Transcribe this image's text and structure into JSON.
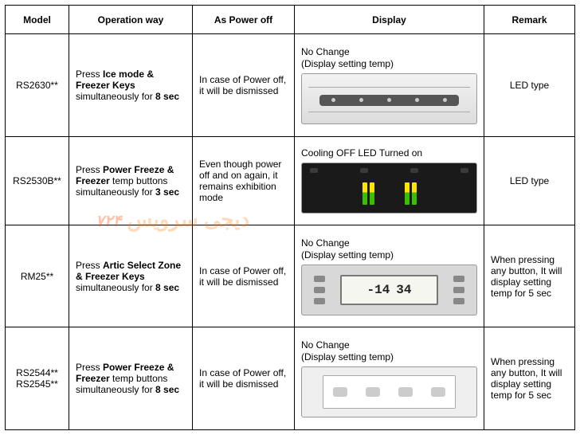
{
  "columns": {
    "model": "Model",
    "operation": "Operation way",
    "power": "As Power off",
    "display": "Display",
    "remark": "Remark"
  },
  "rows": [
    {
      "model": "RS2630**",
      "op_pre": "Press ",
      "op_bold": "Ice mode & Freezer Keys",
      "op_post": " simultaneously for ",
      "op_sec": "8 sec",
      "power": "In case of Power off, it will be dismissed",
      "display_line1": "No Change",
      "display_line2": "(Display setting temp)",
      "remark": "LED type"
    },
    {
      "model": "RS2530B**",
      "op_pre": "Press ",
      "op_bold": "Power Freeze & Freezer",
      "op_post": " temp buttons simultaneously for ",
      "op_sec": "3 sec",
      "power": "Even though power off and on again, it remains exhibition mode",
      "display_line1": "Cooling OFF LED Turned on",
      "display_line2": "",
      "remark": "LED type"
    },
    {
      "model": "RM25**",
      "op_pre": "Press ",
      "op_bold": "Artic Select Zone & Freezer Keys",
      "op_post": " simultaneously for ",
      "op_sec": "8 sec",
      "power": "In case of Power off, it will be dismissed",
      "display_line1": "No Change",
      "display_line2": "(Display setting temp)",
      "lcd_left": "-14",
      "lcd_right": "34",
      "remark": "When pressing any button, It will display setting temp for 5 sec"
    },
    {
      "model": "RS2544** RS2545**",
      "op_pre": "Press ",
      "op_bold": "Power Freeze & Freezer",
      "op_post": " temp buttons simultaneously for ",
      "op_sec": "8 sec",
      "power": "In case of Power off, it will be dismissed",
      "display_line1": "No Change",
      "display_line2": "(Display setting temp)",
      "remark": "When pressing any button, It will display setting temp for 5 sec"
    }
  ],
  "watermark": {
    "text": "دیجی سرویس",
    "num": "۷۲۴"
  }
}
